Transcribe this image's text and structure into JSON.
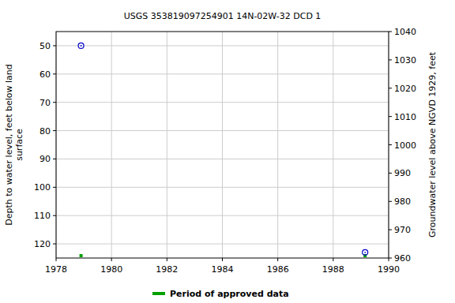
{
  "chart_data": {
    "type": "scatter",
    "title": "USGS 353819097254901 14N-02W-32 DCD 1",
    "ylabel": [
      "Depth to water level, feet below land",
      "surface"
    ],
    "y2label": "Groundwater level above NGVD 1929, feet",
    "x": [
      1978.9,
      1989.15
    ],
    "values": [
      50,
      123
    ],
    "color": "#0000cc",
    "marker": "circle",
    "xlim": [
      1978,
      1990
    ],
    "xticks": [
      1978,
      1980,
      1982,
      1984,
      1986,
      1988,
      1990
    ],
    "ylim": [
      125,
      45
    ],
    "yticks": [
      50,
      60,
      70,
      80,
      90,
      100,
      110,
      120
    ],
    "y2lim": [
      960,
      1040
    ],
    "y2ticks": [
      960,
      970,
      980,
      990,
      1000,
      1010,
      1020,
      1030,
      1040
    ],
    "grid": true,
    "approved_periods": {
      "label": "Period of approved data",
      "color": "#00a000",
      "x": [
        1978.9,
        1989.15
      ]
    }
  }
}
